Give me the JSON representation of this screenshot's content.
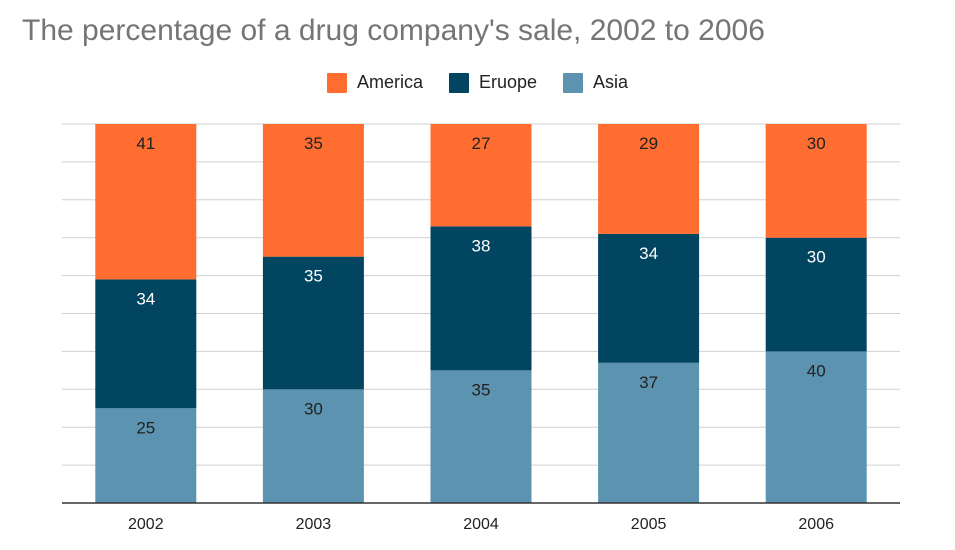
{
  "chart_data": {
    "type": "bar",
    "stacked": true,
    "title": "The percentage of a drug company's sale, 2002 to 2006",
    "categories": [
      "2002",
      "2003",
      "2004",
      "2005",
      "2006"
    ],
    "series": [
      {
        "name": "Asia",
        "color": "#5b93b0",
        "label_color": "#222222",
        "values": [
          25,
          30,
          35,
          37,
          40
        ]
      },
      {
        "name": "Eruope",
        "color": "#014561",
        "label_color": "#ffffff",
        "values": [
          34,
          35,
          38,
          34,
          30
        ]
      },
      {
        "name": "America",
        "color": "#ff6d31",
        "label_color": "#222222",
        "values": [
          41,
          35,
          27,
          29,
          30
        ]
      }
    ],
    "legend_order": [
      "America",
      "Eruope",
      "Asia"
    ],
    "ylim": [
      0,
      100
    ],
    "grid": true,
    "legend_position": "top"
  }
}
